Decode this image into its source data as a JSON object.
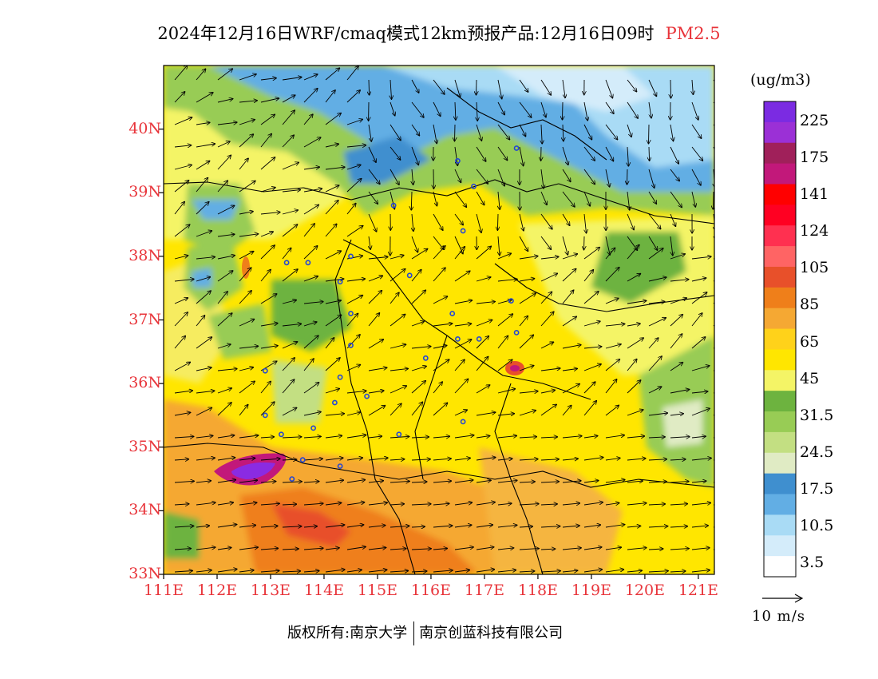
{
  "title": {
    "main": "2024年12月16日WRF/cmaq模式12km预报产品:12月16日09时",
    "variable": "PM2.5"
  },
  "map": {
    "extent": {
      "lon": [
        111,
        121.3
      ],
      "lat": [
        33,
        41
      ]
    },
    "lat_labels": [
      "40N",
      "39N",
      "38N",
      "37N",
      "36N",
      "35N",
      "34N",
      "33N"
    ],
    "lat_values": [
      40,
      39,
      38,
      37,
      36,
      35,
      34,
      33
    ],
    "lon_labels": [
      "111E",
      "112E",
      "113E",
      "114E",
      "115E",
      "116E",
      "117E",
      "118E",
      "119E",
      "120E",
      "121E"
    ],
    "lon_values": [
      111,
      112,
      113,
      114,
      115,
      116,
      117,
      118,
      119,
      120,
      121
    ],
    "field_colors": {
      "yellow": "#fff200",
      "light_yellow": "#f4f466",
      "orange": "#f5a833",
      "dark_orange": "#ef7f1a",
      "red_orange": "#e8502a",
      "green_dark": "#6db33f",
      "green": "#98cc55",
      "green_light": "#c3df82",
      "pale_green": "#e0ebc4",
      "blue_dark": "#3f8fcf",
      "blue": "#62aee4",
      "blue_light": "#a9dbf5",
      "purple": "#8a2be2",
      "magenta": "#c2187a"
    }
  },
  "legend": {
    "unit": "(ug/m3)",
    "colors": [
      "#ffffff",
      "#d4ecfa",
      "#a9dbf5",
      "#62aee4",
      "#3f8fcf",
      "#e0ebc4",
      "#c3df82",
      "#98cc55",
      "#6db33f",
      "#f4f466",
      "#ffe600",
      "#ffd21a",
      "#f5a833",
      "#ef7f1a",
      "#e8502a",
      "#ff6464",
      "#ff3050",
      "#ff0022",
      "#ff0000",
      "#c2187a",
      "#a0205a",
      "#9b30d6",
      "#7b2be2"
    ],
    "labels": [
      "3.5",
      "10.5",
      "17.5",
      "24.5",
      "31.5",
      "45",
      "65",
      "85",
      "105",
      "124",
      "141",
      "175",
      "225"
    ]
  },
  "wind": {
    "reference_label": "10 m/s"
  },
  "footer": {
    "copyright": "版权所有:南京大学",
    "company": "南京创蓝科技有限公司"
  }
}
